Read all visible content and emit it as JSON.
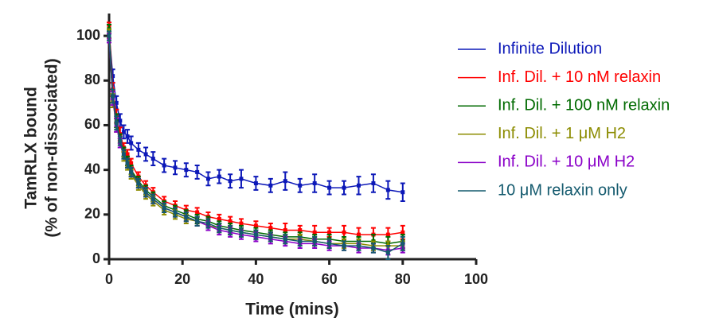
{
  "chart_data": {
    "type": "scatter",
    "x_label": "Time (mins)",
    "y_label": [
      "TamRLX bound",
      "(% of non-dissociated)"
    ],
    "xlim": [
      0,
      100
    ],
    "xticks": [
      0,
      20,
      40,
      60,
      80,
      100
    ],
    "ylim": [
      0,
      110
    ],
    "yticks": [
      0,
      20,
      40,
      60,
      80,
      100
    ],
    "x": [
      0,
      1,
      2,
      3,
      4,
      5,
      6,
      8,
      10,
      12,
      15,
      18,
      21,
      24,
      27,
      30,
      33,
      36,
      40,
      44,
      48,
      52,
      56,
      60,
      64,
      68,
      72,
      76,
      80
    ],
    "series": [
      {
        "name": "Infinite Dilution",
        "color": "#0c18b8",
        "values": [
          102,
          82,
          70,
          62,
          57,
          55,
          52,
          49,
          47,
          45,
          42,
          41,
          40,
          39,
          36,
          37,
          35,
          36,
          34,
          33,
          35,
          33,
          34,
          32,
          32,
          33,
          34,
          31,
          30
        ],
        "errors": [
          3,
          3,
          3,
          3,
          3,
          3,
          3,
          3,
          3,
          3,
          3,
          3,
          3,
          3,
          3,
          3,
          3,
          4,
          3,
          3,
          4,
          3,
          4,
          3,
          3,
          4,
          4,
          4,
          4
        ]
      },
      {
        "name": "Inf. Dil. + 10 nM relaxin",
        "color": "#ff0000",
        "values": [
          104,
          76,
          64,
          56,
          50,
          47,
          43,
          37,
          33,
          30,
          26,
          24,
          22,
          21,
          19,
          18,
          17,
          16,
          15,
          14,
          13,
          13,
          12,
          12,
          12,
          11,
          11,
          11,
          12
        ],
        "errors": [
          2,
          3,
          3,
          3,
          2,
          2,
          2,
          2,
          2,
          2,
          2,
          2,
          2,
          2,
          2,
          2,
          2,
          2,
          2,
          2,
          3,
          2,
          3,
          2,
          3,
          3,
          3,
          3,
          3
        ]
      },
      {
        "name": "Inf. Dil. + 100 nM relaxin",
        "color": "#006a00",
        "values": [
          103,
          73,
          62,
          54,
          48,
          44,
          40,
          35,
          31,
          28,
          24,
          22,
          20,
          18,
          17,
          15,
          14,
          13,
          12,
          11,
          10,
          10,
          9,
          9,
          8,
          8,
          8,
          7,
          8
        ],
        "errors": [
          2,
          3,
          3,
          2,
          2,
          2,
          2,
          2,
          2,
          2,
          2,
          2,
          2,
          2,
          2,
          2,
          2,
          2,
          2,
          2,
          2,
          2,
          2,
          2,
          2,
          2,
          3,
          3,
          3
        ]
      },
      {
        "name": "Inf. Dil. + 1 μM H2",
        "color": "#8c8c00",
        "values": [
          101,
          71,
          60,
          52,
          46,
          42,
          38,
          33,
          29,
          26,
          22,
          20,
          18,
          17,
          15,
          14,
          13,
          12,
          11,
          10,
          9,
          9,
          8,
          7,
          7,
          7,
          6,
          6,
          6
        ],
        "errors": [
          2,
          3,
          3,
          2,
          2,
          2,
          2,
          2,
          2,
          2,
          2,
          2,
          2,
          2,
          2,
          2,
          2,
          2,
          2,
          2,
          2,
          2,
          2,
          2,
          2,
          2,
          2,
          2,
          2
        ]
      },
      {
        "name": "Inf. Dil. + 10 μM H2",
        "color": "#8a00c8",
        "values": [
          99,
          72,
          60,
          52,
          47,
          43,
          39,
          34,
          30,
          27,
          23,
          21,
          19,
          17,
          15,
          13,
          12,
          11,
          10,
          9,
          8,
          7,
          7,
          6,
          6,
          5,
          5,
          4,
          5
        ],
        "errors": [
          2,
          3,
          3,
          2,
          2,
          2,
          2,
          2,
          2,
          2,
          2,
          2,
          2,
          2,
          2,
          2,
          2,
          2,
          2,
          2,
          2,
          2,
          2,
          2,
          2,
          2,
          2,
          2,
          2
        ]
      },
      {
        "name": "10 μM relaxin only",
        "color": "#145a6e",
        "values": [
          100,
          73,
          61,
          53,
          47,
          43,
          39,
          34,
          30,
          27,
          23,
          21,
          19,
          17,
          16,
          14,
          13,
          12,
          11,
          10,
          9,
          8,
          8,
          7,
          6,
          6,
          5,
          3,
          7
        ],
        "errors": [
          2,
          3,
          3,
          2,
          2,
          2,
          2,
          2,
          2,
          2,
          2,
          2,
          2,
          2,
          2,
          2,
          2,
          2,
          2,
          2,
          2,
          2,
          2,
          2,
          2,
          2,
          2,
          3,
          3
        ]
      }
    ]
  }
}
